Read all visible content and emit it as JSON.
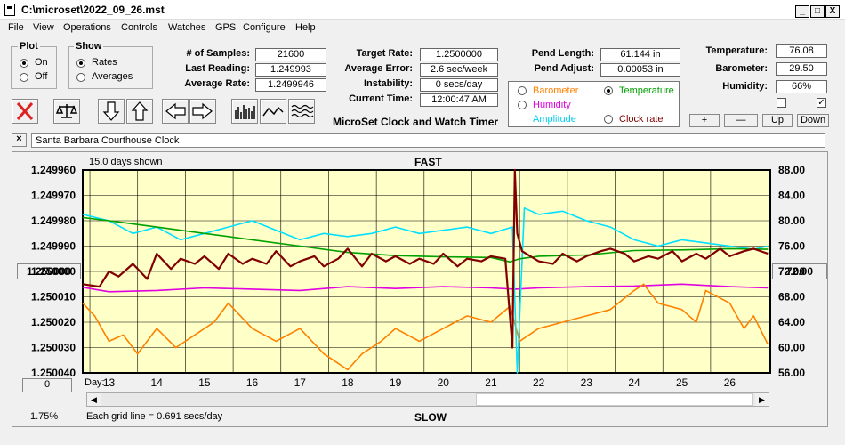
{
  "window": {
    "title": "C:\\microset\\2022_09_26.mst",
    "min": "_",
    "max": "□",
    "close": "X"
  },
  "menu": [
    "File",
    "View",
    "Operations",
    "Controls",
    "Watches",
    "GPS",
    "Configure",
    "Help"
  ],
  "plot": {
    "title": "Plot",
    "on": "On",
    "off": "Off",
    "selected": "On"
  },
  "show": {
    "title": "Show",
    "rates": "Rates",
    "averages": "Averages",
    "selected": "Rates"
  },
  "stats": {
    "samples_label": "# of Samples:",
    "samples": "21600",
    "last_label": "Last Reading:",
    "last": "1.249993",
    "avg_label": "Average Rate:",
    "avg": "1.2499946",
    "target_label": "Target Rate:",
    "target": "1.2500000",
    "error_label": "Average Error:",
    "error": "2.6 sec/week",
    "instab_label": "Instability:",
    "instab": "0 secs/day",
    "time_label": "Current Time:",
    "time": "12:00:47 AM",
    "app_label": "MicroSet Clock and Watch Timer",
    "pend_len_label": "Pend Length:",
    "pend_len": "61.144 in",
    "pend_adj_label": "Pend Adjust:",
    "pend_adj": "0.00053 in",
    "temp_label": "Temperature:",
    "temp": "76.08",
    "baro_label": "Barometer:",
    "baro": "29.50",
    "hum_label": "Humidity:",
    "hum": "66%"
  },
  "sensor": {
    "barometer": "Barometer",
    "temperature": "Temperature",
    "humidity": "Humidity",
    "clock": "Clock rate",
    "amplitude": "Amplitude",
    "selected": "Temperature"
  },
  "buttons": {
    "plus": "+",
    "minus": "—",
    "up": "Up",
    "down": "Down",
    "close_x": "×"
  },
  "colors": {
    "barometer": "#ff8000",
    "temperature": "#00a000",
    "humidity": "#e000e0",
    "amplitude": "#00e0ff",
    "clock": "#800000",
    "plotbg": "#ffffc8"
  },
  "watch_name": "Santa Barbara Courthouse Clock",
  "chart_header": {
    "days_shown": "15.0 days shown",
    "fast": "FAST",
    "slow": "SLOW",
    "grid_note": "Each grid line = 0.691 secs/day",
    "center_left": "1.250000",
    "center_right": "72.00",
    "zero_btn": "0",
    "pct": "1.75%",
    "day_label": "Day:"
  },
  "chart_data": {
    "type": "line",
    "x_ticks": [
      "13",
      "14",
      "15",
      "16",
      "17",
      "18",
      "19",
      "20",
      "21",
      "22",
      "23",
      "24",
      "25",
      "26"
    ],
    "y_left_ticks": [
      "1.249960",
      "1.249970",
      "1.249980",
      "1.249990",
      "1.250000",
      "1.250010",
      "1.250020",
      "1.250030",
      "1.250040"
    ],
    "y_right_ticks": [
      "88.00",
      "84.00",
      "80.00",
      "76.00",
      "72.00",
      "68.00",
      "64.00",
      "60.00",
      "56.00"
    ],
    "xlim": [
      12.45,
      26.85
    ],
    "ylim_left": [
      1.24996,
      1.25004
    ],
    "ylim_right": [
      56,
      88
    ],
    "series": [
      {
        "key": "humidity",
        "x": [
          12.45,
          13,
          14,
          15,
          16,
          17,
          18,
          19,
          20,
          21,
          21.5,
          22,
          23,
          24,
          25,
          26,
          26.8
        ],
        "y": [
          69.5,
          68.8,
          69.0,
          69.4,
          69.2,
          69.0,
          69.6,
          69.3,
          69.6,
          69.4,
          69.2,
          69.4,
          69.6,
          69.7,
          70.0,
          69.6,
          69.4
        ]
      },
      {
        "key": "barometer",
        "x": [
          12.45,
          12.7,
          13,
          13.3,
          13.6,
          14,
          14.4,
          14.8,
          15.2,
          15.5,
          16,
          16.5,
          17,
          17.5,
          18,
          18.3,
          18.7,
          19,
          19.5,
          20,
          20.5,
          21,
          21.4,
          21.6,
          22,
          22.5,
          23,
          23.5,
          24,
          24.2,
          24.5,
          25,
          25.3,
          25.5,
          26,
          26.3,
          26.5,
          26.8
        ],
        "y": [
          67,
          65,
          61,
          62,
          59,
          63,
          60,
          62,
          64,
          67,
          63,
          61,
          63,
          59,
          56.5,
          59,
          61,
          63,
          61,
          63,
          65,
          64,
          66.5,
          61,
          63,
          64,
          65,
          66,
          69,
          70,
          67,
          66,
          64,
          69,
          67,
          63,
          65,
          60.5
        ]
      },
      {
        "key": "amplitude",
        "x": [
          12.45,
          13,
          13.5,
          14,
          14.5,
          15,
          15.5,
          16,
          16.5,
          17,
          17.5,
          18,
          18.5,
          19,
          19.5,
          20,
          20.5,
          21,
          21.45,
          21.55,
          21.7,
          22,
          22.5,
          23,
          23.5,
          24,
          24.5,
          25,
          25.5,
          26,
          26.5,
          26.8
        ],
        "y": [
          81,
          80,
          78,
          79,
          77,
          78,
          79,
          80,
          78.5,
          77,
          78,
          77.5,
          78,
          79,
          78,
          78.5,
          79,
          78,
          79,
          56,
          82,
          81,
          81.5,
          80,
          79,
          77,
          76,
          77,
          76.5,
          76,
          75.5,
          76
        ]
      },
      {
        "key": "temperature",
        "x": [
          12.45,
          13,
          14,
          15,
          16,
          17,
          18,
          19,
          20,
          21,
          21.4,
          21.6,
          22,
          23,
          24,
          25,
          26,
          26.8
        ],
        "y": [
          80.5,
          80,
          79,
          78,
          77,
          76,
          75,
          74.5,
          74.3,
          74.2,
          73.5,
          74,
          74.4,
          74.6,
          75.3,
          75.4,
          75.6,
          75.5
        ]
      },
      {
        "key": "clock",
        "x": [
          12.45,
          12.8,
          13,
          13.2,
          13.5,
          13.8,
          14,
          14.3,
          14.5,
          14.8,
          15,
          15.3,
          15.5,
          15.8,
          16,
          16.3,
          16.5,
          16.8,
          17,
          17.3,
          17.5,
          17.8,
          18,
          18.3,
          18.5,
          18.8,
          19,
          19.3,
          19.5,
          19.8,
          20,
          20.3,
          20.5,
          20.8,
          21,
          21.3,
          21.45,
          21.5,
          21.55,
          21.65,
          22,
          22.3,
          22.5,
          22.8,
          23,
          23.3,
          23.5,
          23.8,
          24,
          24.3,
          24.5,
          24.8,
          25,
          25.3,
          25.5,
          25.8,
          26,
          26.3,
          26.5,
          26.8
        ],
        "y": [
          1.250005,
          1.250006,
          1.25,
          1.250002,
          1.249997,
          1.250003,
          1.249993,
          1.249999,
          1.249995,
          1.249997,
          1.249994,
          1.249999,
          1.249993,
          1.249997,
          1.249995,
          1.249997,
          1.249992,
          1.249998,
          1.249996,
          1.249994,
          1.249998,
          1.249995,
          1.249991,
          1.249998,
          1.249993,
          1.249996,
          1.249994,
          1.249997,
          1.249995,
          1.249997,
          1.249993,
          1.249998,
          1.249995,
          1.249996,
          1.249994,
          1.249995,
          1.25003,
          1.24996,
          1.249985,
          1.249992,
          1.249996,
          1.249997,
          1.249993,
          1.249996,
          1.249994,
          1.249992,
          1.249991,
          1.249993,
          1.249996,
          1.249994,
          1.249995,
          1.249992,
          1.249996,
          1.249993,
          1.249995,
          1.249991,
          1.249994,
          1.249992,
          1.249991,
          1.249993
        ]
      }
    ]
  }
}
